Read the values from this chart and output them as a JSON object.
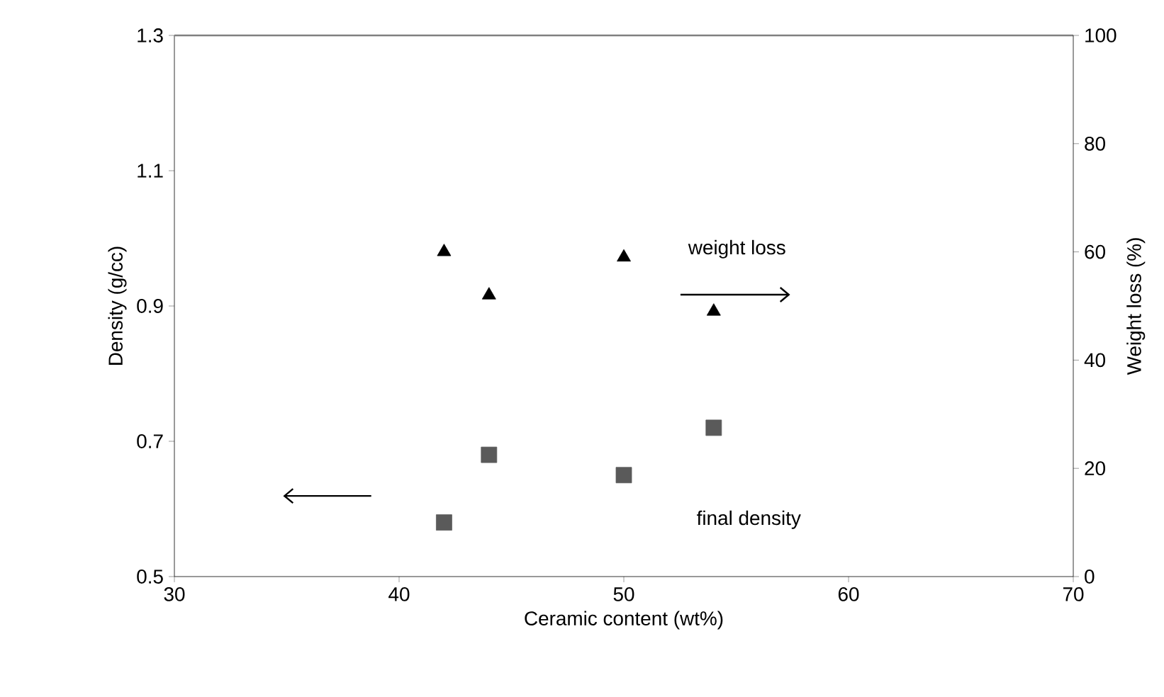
{
  "chart_data": {
    "type": "scatter",
    "xlabel": "Ceramic content (wt%)",
    "ylabel": "Density (g/cc)",
    "y2label": "Weight loss (%)",
    "x": [
      42,
      44,
      50,
      54
    ],
    "series": [
      {
        "color": "#5a5a5a",
        "marker": "square",
        "values": [
          0.58,
          0.68,
          0.65,
          0.72
        ]
      },
      {
        "color": "#000000",
        "marker": "triangle",
        "axis": "y2",
        "values": [
          60,
          52,
          59,
          49
        ]
      }
    ],
    "xlim": [
      30,
      70
    ],
    "xticks": [
      30,
      40,
      50,
      60,
      70
    ],
    "ylim": [
      0.5,
      1.3
    ],
    "yticks": [
      0.5,
      0.7,
      0.9,
      1.1,
      1.3
    ],
    "y2lim": [
      0,
      100
    ],
    "y2ticks": [
      0,
      20,
      40,
      60,
      80,
      100
    ],
    "annotations": [
      "weight loss",
      "final density"
    ],
    "grid": false
  }
}
